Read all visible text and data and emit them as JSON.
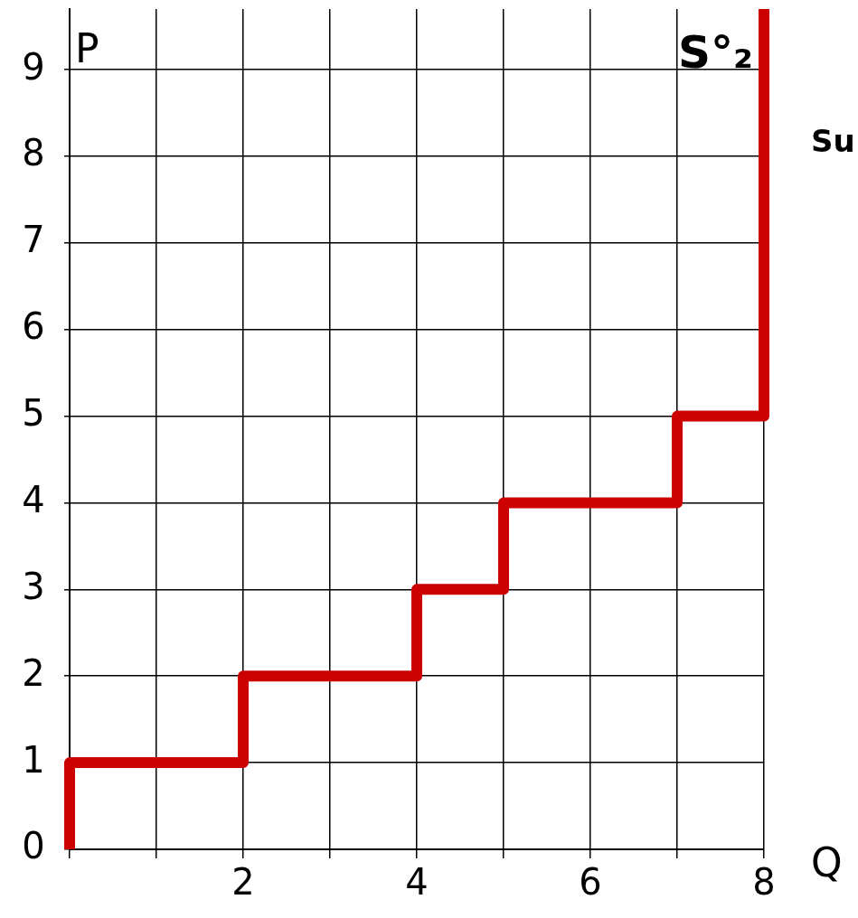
{
  "chart_data": {
    "type": "line",
    "xlabel": "Q",
    "ylabel": "P",
    "annotations": [
      "Su"
    ],
    "series": [
      {
        "name": "S°₂",
        "color": "#cc0000",
        "x": [
          0,
          0,
          2,
          2,
          4,
          4,
          5,
          5,
          7,
          7,
          8,
          8
        ],
        "values": [
          0,
          1,
          1,
          2,
          2,
          3,
          3,
          4,
          4,
          5,
          5,
          9.7
        ]
      }
    ],
    "xlim": [
      0,
      8
    ],
    "xticks": [
      {
        "value": 0,
        "label": null
      },
      {
        "value": 1,
        "label": null
      },
      2,
      {
        "value": 3,
        "label": null
      },
      4,
      {
        "value": 5,
        "label": null
      },
      6,
      {
        "value": 7,
        "label": null
      },
      8
    ],
    "ylim": [
      0,
      9.7
    ],
    "yticks": [
      0,
      1,
      2,
      3,
      4,
      5,
      6,
      7,
      8,
      9
    ],
    "grid": true,
    "legend": false,
    "marker": "none",
    "line_style": "solid"
  }
}
